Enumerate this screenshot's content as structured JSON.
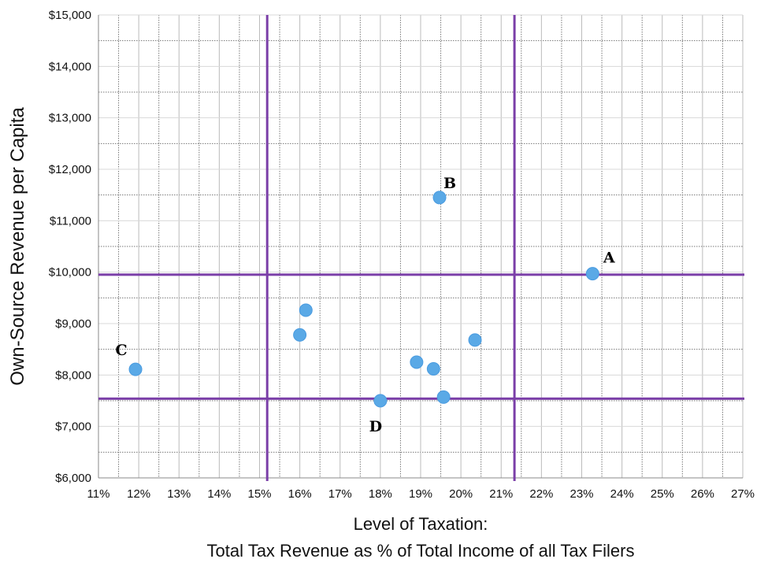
{
  "chart_data": {
    "type": "scatter",
    "title": "",
    "xlabel_line1": "Level of Taxation:",
    "xlabel_line2": "Total Tax Revenue as % of Total Income of all Tax Filers",
    "ylabel": "Own-Source Revenue per Capita",
    "xlim": [
      11,
      27
    ],
    "ylim": [
      6000,
      15000
    ],
    "x_ticks": [
      11,
      12,
      13,
      14,
      15,
      16,
      17,
      18,
      19,
      20,
      21,
      22,
      23,
      24,
      25,
      26,
      27
    ],
    "x_tick_labels": [
      "11%",
      "12%",
      "13%",
      "14%",
      "15%",
      "16%",
      "17%",
      "18%",
      "19%",
      "20%",
      "21%",
      "22%",
      "23%",
      "24%",
      "25%",
      "26%",
      "27%"
    ],
    "y_ticks": [
      6000,
      7000,
      8000,
      9000,
      10000,
      11000,
      12000,
      13000,
      14000,
      15000
    ],
    "y_tick_labels": [
      "$6,000",
      "$7,000",
      "$8,000",
      "$9,000",
      "$10,000",
      "$11,000",
      "$12,000",
      "$13,000",
      "$14,000",
      "$15,000"
    ],
    "grid": true,
    "points": [
      {
        "x": 11.92,
        "y": 8110,
        "label": "C"
      },
      {
        "x": 16.0,
        "y": 8780,
        "label": ""
      },
      {
        "x": 16.15,
        "y": 9260,
        "label": ""
      },
      {
        "x": 18.0,
        "y": 7500,
        "label": "D"
      },
      {
        "x": 18.9,
        "y": 8250,
        "label": ""
      },
      {
        "x": 19.32,
        "y": 8120,
        "label": ""
      },
      {
        "x": 19.47,
        "y": 11450,
        "label": "B"
      },
      {
        "x": 19.57,
        "y": 7570,
        "label": ""
      },
      {
        "x": 20.35,
        "y": 8680,
        "label": ""
      },
      {
        "x": 23.27,
        "y": 9970,
        "label": "A"
      }
    ],
    "reference_lines": {
      "vertical": [
        15.19,
        21.33
      ],
      "horizontal": [
        9950,
        7540
      ]
    },
    "colors": {
      "point": "#5aa9e6",
      "reference": "#7b3fa8",
      "grid": "#bbbbbb"
    }
  }
}
